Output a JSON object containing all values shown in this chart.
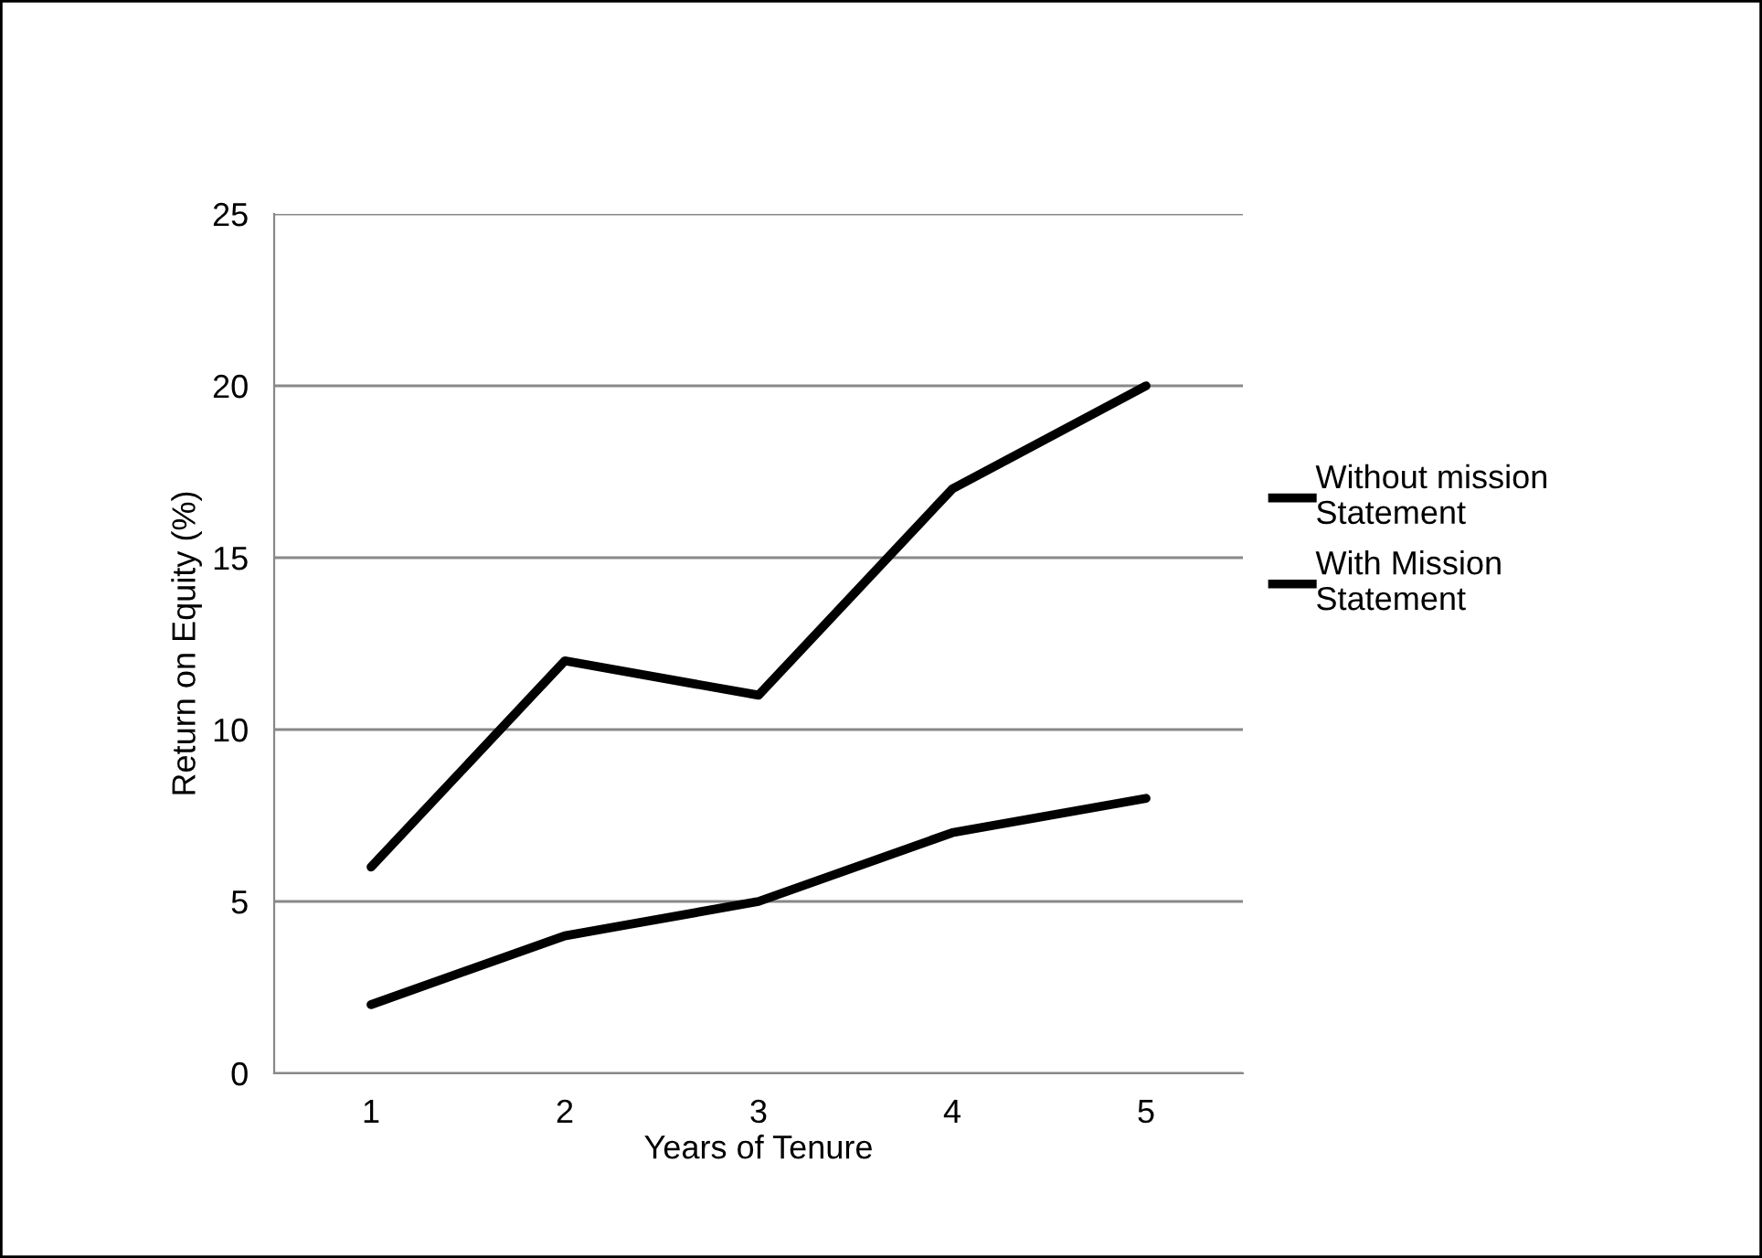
{
  "chart_data": {
    "type": "line",
    "xlabel": "Years of Tenure",
    "ylabel": "Return on Equity (%)",
    "categories": [
      "1",
      "2",
      "3",
      "4",
      "5"
    ],
    "series": [
      {
        "name": "Without mission Statement",
        "color": "#000000",
        "values": [
          6,
          12,
          11,
          17,
          20
        ]
      },
      {
        "name": "With Mission Statement",
        "color": "#000000",
        "values": [
          2,
          4,
          5,
          7,
          8
        ]
      }
    ],
    "ylim": [
      0,
      25
    ],
    "yticks": [
      0,
      5,
      10,
      15,
      20,
      25
    ],
    "grid": "y",
    "legend": "right",
    "marker": "none",
    "line_style": "solid"
  }
}
